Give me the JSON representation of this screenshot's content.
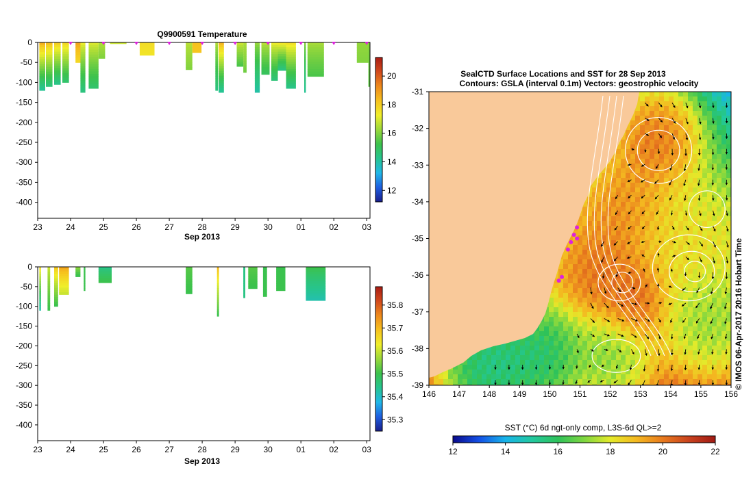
{
  "colors": {
    "land": "#f9c99a",
    "marker": "#dd22dd",
    "frame": "#000000",
    "sst_stops": [
      "#0a0a8c",
      "#1450e6",
      "#18b4ea",
      "#22c8a0",
      "#2ec25a",
      "#7ed640",
      "#e4ea2a",
      "#f4b820",
      "#e87a1e",
      "#c9421e",
      "#a01a14"
    ],
    "temp_stops": [
      "#1a1e8c",
      "#1e5ee0",
      "#20b8e8",
      "#26c490",
      "#3cc24c",
      "#9ad83a",
      "#f0ee2a",
      "#f6c21e",
      "#ee8a1c",
      "#d24a1c",
      "#a81c14"
    ],
    "sal_stops": [
      "#1a1e8c",
      "#1e5ee0",
      "#20b8e8",
      "#26c490",
      "#3cc24c",
      "#9ad83a",
      "#f0ee2a",
      "#f6c21e",
      "#ee8a1c",
      "#d24a1c",
      "#a81c14"
    ]
  },
  "chart_data": [
    {
      "type": "heatmap",
      "title": "Q9900591  Temperature",
      "xlabel": "Sep 2013",
      "x_ticks": [
        "23",
        "24",
        "25",
        "26",
        "27",
        "28",
        "29",
        "30",
        "01",
        "02",
        "03"
      ],
      "y_ticks": [
        0,
        -50,
        -100,
        -150,
        -200,
        -250,
        -300,
        -350,
        -400
      ],
      "ylim": [
        -440,
        0
      ],
      "xlim_days": [
        23,
        33.1
      ],
      "profile_marker_days": [
        24,
        25,
        26,
        27,
        28,
        29,
        30,
        31,
        32,
        33
      ],
      "colorbar": {
        "ticks": [
          12,
          14,
          16,
          18,
          20
        ],
        "range": [
          11.2,
          21.3
        ]
      },
      "profiles": [
        {
          "day": 23.05,
          "width": 0.18,
          "depth": 120,
          "top_value": 18.6,
          "bottom_value": 14.2
        },
        {
          "day": 23.25,
          "width": 0.2,
          "depth": 110,
          "top_value": 18.3,
          "bottom_value": 14.6
        },
        {
          "day": 23.5,
          "width": 0.2,
          "depth": 105,
          "top_value": 18.0,
          "bottom_value": 14.4
        },
        {
          "day": 23.75,
          "width": 0.2,
          "depth": 100,
          "top_value": 17.8,
          "bottom_value": 14.8
        },
        {
          "day": 24.15,
          "width": 0.2,
          "depth": 50,
          "top_value": 18.8,
          "bottom_value": 17.8
        },
        {
          "day": 24.3,
          "width": 0.15,
          "depth": 125,
          "top_value": 17.2,
          "bottom_value": 14.5
        },
        {
          "day": 24.55,
          "width": 0.3,
          "depth": 115,
          "top_value": 17.0,
          "bottom_value": 14.8
        },
        {
          "day": 24.85,
          "width": 0.2,
          "depth": 40,
          "top_value": 16.5,
          "bottom_value": 16.0
        },
        {
          "day": 25.2,
          "width": 0.5,
          "depth": 3,
          "top_value": 16.8,
          "bottom_value": 16.8
        },
        {
          "day": 26.1,
          "width": 0.45,
          "depth": 32,
          "top_value": 17.7,
          "bottom_value": 17.5
        },
        {
          "day": 27.5,
          "width": 0.2,
          "depth": 68,
          "top_value": 16.6,
          "bottom_value": 16.0
        },
        {
          "day": 27.7,
          "width": 0.28,
          "depth": 25,
          "top_value": 18.3,
          "bottom_value": 18.2
        },
        {
          "day": 28.4,
          "width": 0.08,
          "depth": 120,
          "top_value": 16.5,
          "bottom_value": 14.5
        },
        {
          "day": 28.5,
          "width": 0.16,
          "depth": 125,
          "top_value": 18.5,
          "bottom_value": 14.2
        },
        {
          "day": 29.05,
          "width": 0.2,
          "depth": 60,
          "top_value": 16.8,
          "bottom_value": 15.4
        },
        {
          "day": 29.25,
          "width": 0.1,
          "depth": 75,
          "top_value": 16.5,
          "bottom_value": 15.8
        },
        {
          "day": 29.6,
          "width": 0.15,
          "depth": 125,
          "top_value": 16.2,
          "bottom_value": 14.0
        },
        {
          "day": 29.8,
          "width": 0.25,
          "depth": 80,
          "top_value": 16.6,
          "bottom_value": 15.0
        },
        {
          "day": 30.1,
          "width": 0.2,
          "depth": 95,
          "top_value": 17.2,
          "bottom_value": 14.6
        },
        {
          "day": 30.3,
          "width": 0.5,
          "depth": 70,
          "top_value": 17.4,
          "bottom_value": 14.5
        },
        {
          "day": 30.55,
          "width": 0.3,
          "depth": 115,
          "top_value": 17.6,
          "bottom_value": 14.4
        },
        {
          "day": 31.1,
          "width": 0.05,
          "depth": 125,
          "top_value": 16.0,
          "bottom_value": 14.2
        },
        {
          "day": 31.2,
          "width": 0.5,
          "depth": 85,
          "top_value": 16.4,
          "bottom_value": 15.4
        },
        {
          "day": 32.7,
          "width": 0.4,
          "depth": 50,
          "top_value": 16.2,
          "bottom_value": 16.0
        },
        {
          "day": 33.05,
          "width": 0.05,
          "depth": 110,
          "top_value": 16.0,
          "bottom_value": 15.6
        }
      ]
    },
    {
      "type": "heatmap",
      "title": "",
      "xlabel": "Sep 2013",
      "x_ticks": [
        "23",
        "24",
        "25",
        "26",
        "27",
        "28",
        "29",
        "30",
        "01",
        "02",
        "03"
      ],
      "y_ticks": [
        0,
        -50,
        -100,
        -150,
        -200,
        -250,
        -300,
        -350,
        -400
      ],
      "ylim": [
        -440,
        0
      ],
      "xlim_days": [
        23,
        33.1
      ],
      "colorbar": {
        "ticks": [
          35.3,
          35.4,
          35.5,
          35.6,
          35.7,
          35.8
        ],
        "range": [
          35.25,
          35.88
        ]
      },
      "profiles": [
        {
          "day": 23.05,
          "width": 0.05,
          "depth": 110,
          "top_value": 35.65,
          "bottom_value": 35.42
        },
        {
          "day": 23.3,
          "width": 0.08,
          "depth": 110,
          "top_value": 35.6,
          "bottom_value": 35.5
        },
        {
          "day": 23.5,
          "width": 0.12,
          "depth": 100,
          "top_value": 35.68,
          "bottom_value": 35.5
        },
        {
          "day": 23.65,
          "width": 0.3,
          "depth": 70,
          "top_value": 35.72,
          "bottom_value": 35.6
        },
        {
          "day": 24.15,
          "width": 0.15,
          "depth": 25,
          "top_value": 35.55,
          "bottom_value": 35.5
        },
        {
          "day": 24.4,
          "width": 0.05,
          "depth": 60,
          "top_value": 35.5,
          "bottom_value": 35.5
        },
        {
          "day": 24.85,
          "width": 0.4,
          "depth": 40,
          "top_value": 35.45,
          "bottom_value": 35.5
        },
        {
          "day": 27.5,
          "width": 0.2,
          "depth": 68,
          "top_value": 35.52,
          "bottom_value": 35.5
        },
        {
          "day": 28.45,
          "width": 0.06,
          "depth": 125,
          "top_value": 35.7,
          "bottom_value": 35.5
        },
        {
          "day": 29.25,
          "width": 0.06,
          "depth": 78,
          "top_value": 35.45,
          "bottom_value": 35.45
        },
        {
          "day": 29.4,
          "width": 0.28,
          "depth": 55,
          "top_value": 35.52,
          "bottom_value": 35.5
        },
        {
          "day": 29.85,
          "width": 0.12,
          "depth": 75,
          "top_value": 35.5,
          "bottom_value": 35.5
        },
        {
          "day": 30.25,
          "width": 0.28,
          "depth": 60,
          "top_value": 35.5,
          "bottom_value": 35.5
        },
        {
          "day": 31.15,
          "width": 0.6,
          "depth": 85,
          "top_value": 35.5,
          "bottom_value": 35.42
        }
      ]
    },
    {
      "type": "heatmap",
      "title": "SealCTD Surface Locations and SST for 28 Sep 2013",
      "subtitle": "Contours: GSLA (interval 0.1m) Vectors: geostrophic velocity",
      "x_ticks": [
        "146",
        "147",
        "148",
        "149",
        "150",
        "151",
        "152",
        "153",
        "154",
        "155",
        "156"
      ],
      "y_ticks": [
        "-31",
        "-32",
        "-33",
        "-34",
        "-35",
        "-36",
        "-37",
        "-38",
        "-39"
      ],
      "xlim": [
        146,
        156
      ],
      "ylim": [
        -39,
        -31
      ],
      "colorbar": {
        "label": "SST (°C) 6d ngt-only comp, L3S-6d QL>=2",
        "ticks": [
          12,
          14,
          16,
          18,
          20,
          22
        ],
        "range": [
          12,
          22
        ]
      },
      "side_label": "© IMOS 06-Apr-2017 20:16 Hobart Time",
      "sst_features": [
        {
          "lon": 153.5,
          "lat": -32.2,
          "value": 21.5,
          "sigma": 0.9
        },
        {
          "lon": 152.3,
          "lat": -34.2,
          "value": 20.5,
          "sigma": 0.9
        },
        {
          "lon": 151.6,
          "lat": -35.8,
          "value": 20.5,
          "sigma": 0.7
        },
        {
          "lon": 152.8,
          "lat": -36.6,
          "value": 20.8,
          "sigma": 0.6
        },
        {
          "lon": 154.6,
          "lat": -35.0,
          "value": 18.5,
          "sigma": 1.1
        },
        {
          "lon": 155.3,
          "lat": -37.3,
          "value": 16.5,
          "sigma": 0.9
        },
        {
          "lon": 149.8,
          "lat": -38.3,
          "value": 14.5,
          "sigma": 0.8
        },
        {
          "lon": 148.0,
          "lat": -38.6,
          "value": 13.9,
          "sigma": 0.9
        },
        {
          "lon": 152.0,
          "lat": -38.4,
          "value": 16.2,
          "sigma": 0.8
        }
      ],
      "ctd_locations": [
        {
          "lon": 150.9,
          "lat": -34.7
        },
        {
          "lon": 150.8,
          "lat": -34.9
        },
        {
          "lon": 150.9,
          "lat": -35.0
        },
        {
          "lon": 150.7,
          "lat": -35.1
        },
        {
          "lon": 150.6,
          "lat": -35.3
        },
        {
          "lon": 150.4,
          "lat": -36.05
        },
        {
          "lon": 150.3,
          "lat": -36.15
        }
      ],
      "gsla_contours": [
        {
          "lon": 153.6,
          "lat": -32.6,
          "rx": 1.1,
          "ry": 0.9
        },
        {
          "lon": 153.6,
          "lat": -32.6,
          "rx": 0.7,
          "ry": 0.55
        },
        {
          "lon": 154.6,
          "lat": -35.8,
          "rx": 1.2,
          "ry": 0.9
        },
        {
          "lon": 154.7,
          "lat": -35.9,
          "rx": 0.75,
          "ry": 0.55
        },
        {
          "lon": 154.8,
          "lat": -35.9,
          "rx": 0.35,
          "ry": 0.28
        },
        {
          "lon": 152.3,
          "lat": -36.2,
          "rx": 0.7,
          "ry": 0.5
        },
        {
          "lon": 152.4,
          "lat": -36.2,
          "rx": 0.35,
          "ry": 0.28
        },
        {
          "lon": 152.2,
          "lat": -38.2,
          "rx": 0.8,
          "ry": 0.45
        },
        {
          "lon": 155.2,
          "lat": -34.2,
          "rx": 0.6,
          "ry": 0.5
        }
      ]
    }
  ]
}
